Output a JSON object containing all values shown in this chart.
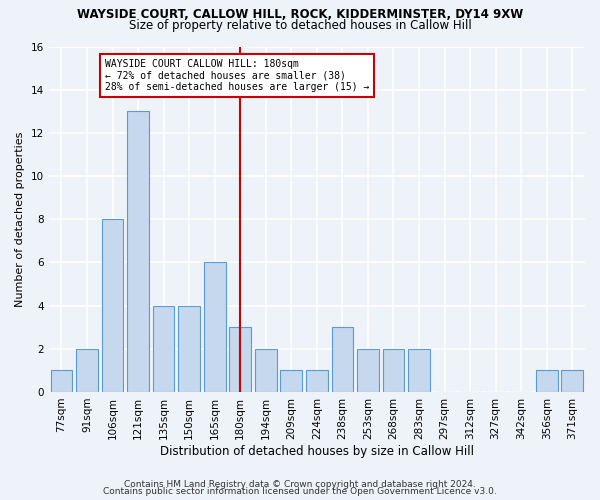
{
  "title1": "WAYSIDE COURT, CALLOW HILL, ROCK, KIDDERMINSTER, DY14 9XW",
  "title2": "Size of property relative to detached houses in Callow Hill",
  "xlabel": "Distribution of detached houses by size in Callow Hill",
  "ylabel": "Number of detached properties",
  "categories": [
    "77sqm",
    "91sqm",
    "106sqm",
    "121sqm",
    "135sqm",
    "150sqm",
    "165sqm",
    "180sqm",
    "194sqm",
    "209sqm",
    "224sqm",
    "238sqm",
    "253sqm",
    "268sqm",
    "283sqm",
    "297sqm",
    "312sqm",
    "327sqm",
    "342sqm",
    "356sqm",
    "371sqm"
  ],
  "values": [
    1,
    2,
    8,
    13,
    4,
    4,
    6,
    3,
    2,
    1,
    1,
    3,
    2,
    2,
    2,
    0,
    0,
    0,
    0,
    1,
    1
  ],
  "bar_color": "#c5d8ed",
  "bar_edge_color": "#5b9bd5",
  "highlight_index": 7,
  "highlight_line_color": "#cc0000",
  "annotation_text": "WAYSIDE COURT CALLOW HILL: 180sqm\n← 72% of detached houses are smaller (38)\n28% of semi-detached houses are larger (15) →",
  "annotation_box_color": "#ffffff",
  "annotation_box_edge_color": "#cc0000",
  "ylim": [
    0,
    16
  ],
  "yticks": [
    0,
    2,
    4,
    6,
    8,
    10,
    12,
    14,
    16
  ],
  "footer1": "Contains HM Land Registry data © Crown copyright and database right 2024.",
  "footer2": "Contains public sector information licensed under the Open Government Licence v3.0.",
  "background_color": "#eef2f9",
  "grid_color": "#ffffff",
  "title1_fontsize": 8.5,
  "title2_fontsize": 8.5,
  "xlabel_fontsize": 8.5,
  "ylabel_fontsize": 8.0,
  "tick_fontsize": 7.5,
  "annotation_fontsize": 7.0,
  "footer_fontsize": 6.5
}
